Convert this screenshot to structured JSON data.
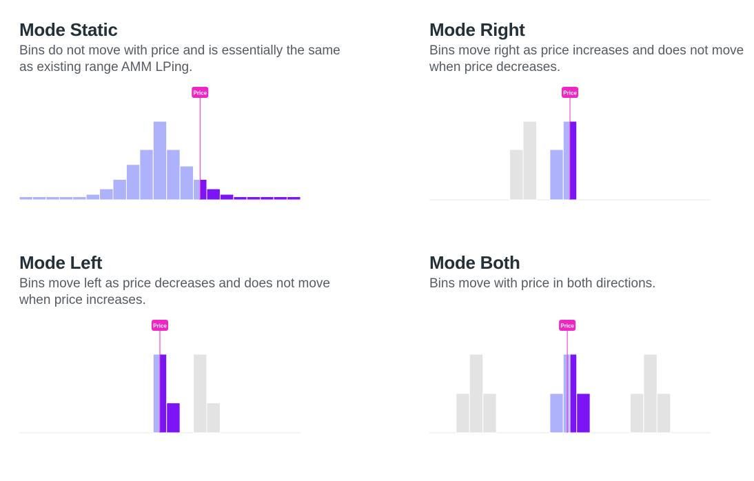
{
  "colors": {
    "passive": "#adb2fb",
    "active": "#7b15f5",
    "inactive": "#e3e3e3",
    "baseline": "#e8e8ea",
    "price": "#f026c4",
    "price_text": "#ffffff"
  },
  "panels": [
    {
      "id": "static",
      "title": "Mode Static",
      "description": "Bins do not move with price and is essentially the same as existing range AMM LPing.",
      "price_label": "Price",
      "price_position": 13.5,
      "chart_data": {
        "type": "bar",
        "bin_count": 21,
        "bins": [
          {
            "i": 0,
            "h": 0.04,
            "s": "passive"
          },
          {
            "i": 1,
            "h": 0.04,
            "s": "passive"
          },
          {
            "i": 2,
            "h": 0.04,
            "s": "passive"
          },
          {
            "i": 3,
            "h": 0.04,
            "s": "passive"
          },
          {
            "i": 4,
            "h": 0.04,
            "s": "passive"
          },
          {
            "i": 5,
            "h": 0.07,
            "s": "passive"
          },
          {
            "i": 6,
            "h": 0.14,
            "s": "passive"
          },
          {
            "i": 7,
            "h": 0.26,
            "s": "passive"
          },
          {
            "i": 8,
            "h": 0.45,
            "s": "passive"
          },
          {
            "i": 9,
            "h": 0.64,
            "s": "passive"
          },
          {
            "i": 10,
            "h": 1.0,
            "s": "passive"
          },
          {
            "i": 11,
            "h": 0.64,
            "s": "passive"
          },
          {
            "i": 12,
            "h": 0.43,
            "s": "passive"
          },
          {
            "i": 13,
            "h": 0.26,
            "s": "passive"
          },
          {
            "i": 13.5,
            "h": 0.26,
            "s": "active",
            "w": 0.5
          },
          {
            "i": 14,
            "h": 0.14,
            "s": "active"
          },
          {
            "i": 15,
            "h": 0.07,
            "s": "active"
          },
          {
            "i": 16,
            "h": 0.04,
            "s": "active"
          },
          {
            "i": 17,
            "h": 0.04,
            "s": "active"
          },
          {
            "i": 18,
            "h": 0.04,
            "s": "active"
          },
          {
            "i": 19,
            "h": 0.04,
            "s": "active"
          },
          {
            "i": 20,
            "h": 0.04,
            "s": "active"
          }
        ]
      }
    },
    {
      "id": "right",
      "title": "Mode Right",
      "description": "Bins move right as price increases and does not move when price decreases.",
      "price_label": "Price",
      "price_position": 10.5,
      "chart_data": {
        "type": "bar",
        "bin_count": 21,
        "bins": [
          {
            "i": 6,
            "h": 0.64,
            "s": "inactive"
          },
          {
            "i": 7,
            "h": 1.0,
            "s": "inactive"
          },
          {
            "i": 9,
            "h": 0.64,
            "s": "passive"
          },
          {
            "i": 10,
            "h": 1.0,
            "s": "passive"
          },
          {
            "i": 10.5,
            "h": 1.0,
            "s": "active",
            "w": 0.5
          }
        ]
      }
    },
    {
      "id": "left",
      "title": "Mode Left",
      "description": "Bins move left as price decreases and does not move when price increases.",
      "price_label": "Price",
      "price_position": 10.5,
      "chart_data": {
        "type": "bar",
        "bin_count": 21,
        "bins": [
          {
            "i": 10,
            "h": 1.0,
            "s": "passive",
            "w": 0.5
          },
          {
            "i": 10.5,
            "h": 1.0,
            "s": "active",
            "w": 0.5
          },
          {
            "i": 11,
            "h": 0.38,
            "s": "active"
          },
          {
            "i": 13,
            "h": 1.0,
            "s": "inactive"
          },
          {
            "i": 14,
            "h": 0.38,
            "s": "inactive"
          }
        ]
      }
    },
    {
      "id": "both",
      "title": "Mode Both",
      "description": "Bins move with price in both directions.",
      "price_label": "Price",
      "price_position": 10.3,
      "chart_data": {
        "type": "bar",
        "bin_count": 21,
        "bins": [
          {
            "i": 2,
            "h": 0.5,
            "s": "inactive"
          },
          {
            "i": 3,
            "h": 1.0,
            "s": "inactive"
          },
          {
            "i": 4,
            "h": 0.5,
            "s": "inactive"
          },
          {
            "i": 9,
            "h": 0.5,
            "s": "passive"
          },
          {
            "i": 10,
            "h": 1.0,
            "s": "passive",
            "w": 0.5
          },
          {
            "i": 10.5,
            "h": 1.0,
            "s": "active",
            "w": 0.5
          },
          {
            "i": 11,
            "h": 0.5,
            "s": "active"
          },
          {
            "i": 15,
            "h": 0.5,
            "s": "inactive"
          },
          {
            "i": 16,
            "h": 1.0,
            "s": "inactive"
          },
          {
            "i": 17,
            "h": 0.5,
            "s": "inactive"
          }
        ]
      }
    }
  ]
}
